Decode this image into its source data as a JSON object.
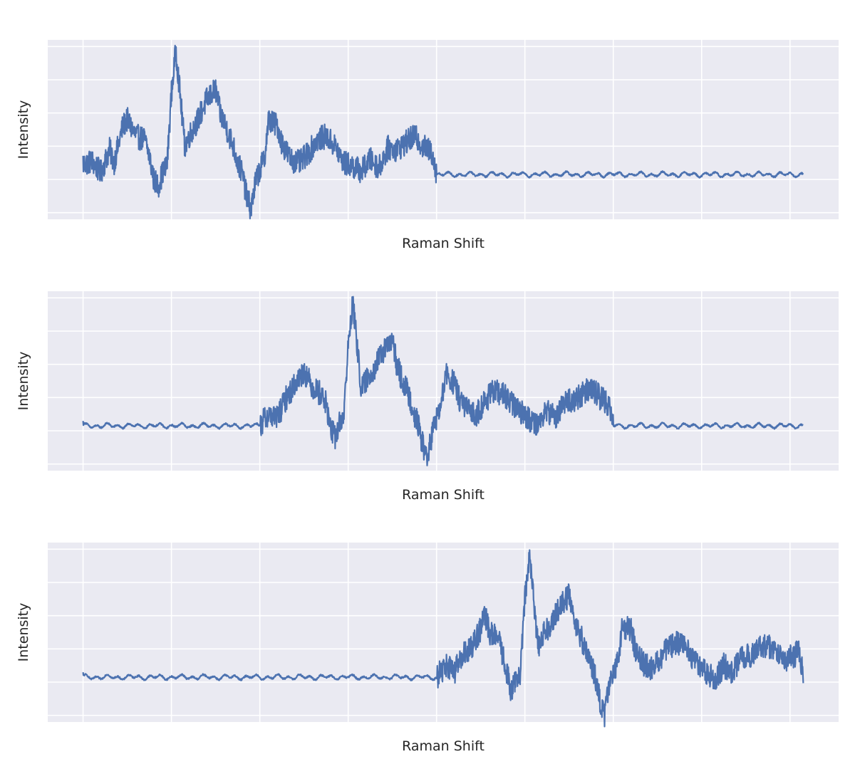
{
  "chart_data": [
    {
      "type": "line",
      "xlabel": "Raman Shift",
      "ylabel": "Intensity",
      "x_tick_labels_shown": false,
      "y_tick_labels_shown": false,
      "grid": true,
      "xlim": [
        -0.4,
        8.55
      ],
      "ylim": [
        -0.2,
        5.2
      ],
      "x_gridlines": [
        0,
        1,
        2,
        3,
        4,
        5,
        6,
        7,
        8
      ],
      "y_gridlines": [
        0,
        1,
        2,
        3,
        4,
        5
      ],
      "baseline": 1.15,
      "series": [
        {
          "active_segment": [
            0,
            4
          ],
          "points": [
            [
              0.0,
              1.45
            ],
            [
              0.1,
              1.55
            ],
            [
              0.2,
              1.2
            ],
            [
              0.3,
              1.9
            ],
            [
              0.35,
              1.5
            ],
            [
              0.45,
              2.6
            ],
            [
              0.5,
              2.8
            ],
            [
              0.6,
              2.3
            ],
            [
              0.7,
              2.2
            ],
            [
              0.75,
              1.7
            ],
            [
              0.8,
              1.0
            ],
            [
              0.85,
              0.8
            ],
            [
              0.9,
              1.2
            ],
            [
              0.95,
              1.4
            ],
            [
              1.0,
              3.6
            ],
            [
              1.05,
              4.9
            ],
            [
              1.1,
              3.5
            ],
            [
              1.15,
              2.0
            ],
            [
              1.2,
              2.3
            ],
            [
              1.3,
              2.8
            ],
            [
              1.4,
              3.4
            ],
            [
              1.5,
              3.7
            ],
            [
              1.55,
              3.0
            ],
            [
              1.6,
              2.7
            ],
            [
              1.7,
              2.0
            ],
            [
              1.75,
              1.5
            ],
            [
              1.8,
              1.2
            ],
            [
              1.85,
              0.5
            ],
            [
              1.9,
              0.1
            ],
            [
              1.95,
              0.9
            ],
            [
              2.0,
              1.3
            ],
            [
              2.05,
              1.6
            ],
            [
              2.1,
              2.8
            ],
            [
              2.2,
              2.6
            ],
            [
              2.25,
              2.1
            ],
            [
              2.35,
              1.6
            ],
            [
              2.45,
              1.5
            ],
            [
              2.55,
              1.8
            ],
            [
              2.65,
              2.2
            ],
            [
              2.75,
              2.3
            ],
            [
              2.85,
              2.0
            ],
            [
              2.95,
              1.5
            ],
            [
              3.05,
              1.4
            ],
            [
              3.15,
              1.25
            ],
            [
              3.25,
              1.6
            ],
            [
              3.35,
              1.35
            ],
            [
              3.45,
              1.95
            ],
            [
              3.55,
              1.9
            ],
            [
              3.65,
              2.1
            ],
            [
              3.75,
              2.3
            ],
            [
              3.85,
              2.0
            ],
            [
              3.95,
              1.8
            ],
            [
              4.0,
              1.2
            ]
          ]
        },
        {
          "active_segment": [
            2,
            6
          ],
          "points": [
            [
              2.0,
              1.15
            ],
            [
              2.1,
              1.5
            ],
            [
              2.2,
              1.4
            ],
            [
              2.3,
              2.0
            ],
            [
              2.35,
              2.2
            ],
            [
              2.45,
              2.6
            ],
            [
              2.5,
              2.8
            ],
            [
              2.6,
              2.3
            ],
            [
              2.7,
              2.1
            ],
            [
              2.75,
              1.8
            ],
            [
              2.8,
              1.1
            ],
            [
              2.85,
              0.8
            ],
            [
              2.9,
              1.2
            ],
            [
              2.95,
              1.5
            ],
            [
              3.0,
              3.5
            ],
            [
              3.05,
              4.9
            ],
            [
              3.1,
              3.6
            ],
            [
              3.15,
              2.2
            ],
            [
              3.2,
              2.5
            ],
            [
              3.3,
              2.9
            ],
            [
              3.4,
              3.4
            ],
            [
              3.5,
              3.7
            ],
            [
              3.55,
              3.0
            ],
            [
              3.6,
              2.6
            ],
            [
              3.7,
              2.0
            ],
            [
              3.75,
              1.5
            ],
            [
              3.8,
              1.1
            ],
            [
              3.85,
              0.5
            ],
            [
              3.9,
              0.2
            ],
            [
              3.95,
              0.9
            ],
            [
              4.0,
              1.4
            ],
            [
              4.05,
              1.7
            ],
            [
              4.1,
              2.7
            ],
            [
              4.2,
              2.4
            ],
            [
              4.25,
              2.0
            ],
            [
              4.35,
              1.6
            ],
            [
              4.45,
              1.5
            ],
            [
              4.55,
              1.9
            ],
            [
              4.65,
              2.2
            ],
            [
              4.75,
              2.1
            ],
            [
              4.85,
              1.8
            ],
            [
              4.95,
              1.6
            ],
            [
              5.05,
              1.35
            ],
            [
              5.15,
              1.2
            ],
            [
              5.25,
              1.6
            ],
            [
              5.35,
              1.4
            ],
            [
              5.45,
              1.9
            ],
            [
              5.55,
              1.9
            ],
            [
              5.65,
              2.1
            ],
            [
              5.75,
              2.3
            ],
            [
              5.85,
              2.0
            ],
            [
              5.95,
              1.8
            ],
            [
              6.0,
              1.2
            ]
          ]
        },
        {
          "active_segment": [
            4,
            8.15
          ],
          "points": [
            [
              4.0,
              1.15
            ],
            [
              4.1,
              1.5
            ],
            [
              4.2,
              1.3
            ],
            [
              4.3,
              1.8
            ],
            [
              4.4,
              2.1
            ],
            [
              4.5,
              2.6
            ],
            [
              4.55,
              3.0
            ],
            [
              4.6,
              2.5
            ],
            [
              4.7,
              2.3
            ],
            [
              4.75,
              1.8
            ],
            [
              4.8,
              1.2
            ],
            [
              4.85,
              0.7
            ],
            [
              4.9,
              1.1
            ],
            [
              4.95,
              1.3
            ],
            [
              5.0,
              3.5
            ],
            [
              5.05,
              4.9
            ],
            [
              5.1,
              3.4
            ],
            [
              5.15,
              2.1
            ],
            [
              5.2,
              2.4
            ],
            [
              5.3,
              2.8
            ],
            [
              5.4,
              3.3
            ],
            [
              5.5,
              3.6
            ],
            [
              5.55,
              3.0
            ],
            [
              5.6,
              2.6
            ],
            [
              5.7,
              1.9
            ],
            [
              5.75,
              1.5
            ],
            [
              5.8,
              1.1
            ],
            [
              5.85,
              0.4
            ],
            [
              5.9,
              0.0
            ],
            [
              5.95,
              0.8
            ],
            [
              6.0,
              1.3
            ],
            [
              6.05,
              1.6
            ],
            [
              6.1,
              2.7
            ],
            [
              6.2,
              2.6
            ],
            [
              6.25,
              2.0
            ],
            [
              6.35,
              1.5
            ],
            [
              6.45,
              1.4
            ],
            [
              6.55,
              1.8
            ],
            [
              6.65,
              2.1
            ],
            [
              6.75,
              2.2
            ],
            [
              6.85,
              1.9
            ],
            [
              6.95,
              1.6
            ],
            [
              7.05,
              1.3
            ],
            [
              7.15,
              1.1
            ],
            [
              7.25,
              1.5
            ],
            [
              7.35,
              1.3
            ],
            [
              7.45,
              1.8
            ],
            [
              7.55,
              1.8
            ],
            [
              7.65,
              2.0
            ],
            [
              7.75,
              2.1
            ],
            [
              7.85,
              1.9
            ],
            [
              7.95,
              1.7
            ],
            [
              8.05,
              1.8
            ],
            [
              8.1,
              2.0
            ],
            [
              8.15,
              1.15
            ]
          ]
        }
      ]
    }
  ]
}
